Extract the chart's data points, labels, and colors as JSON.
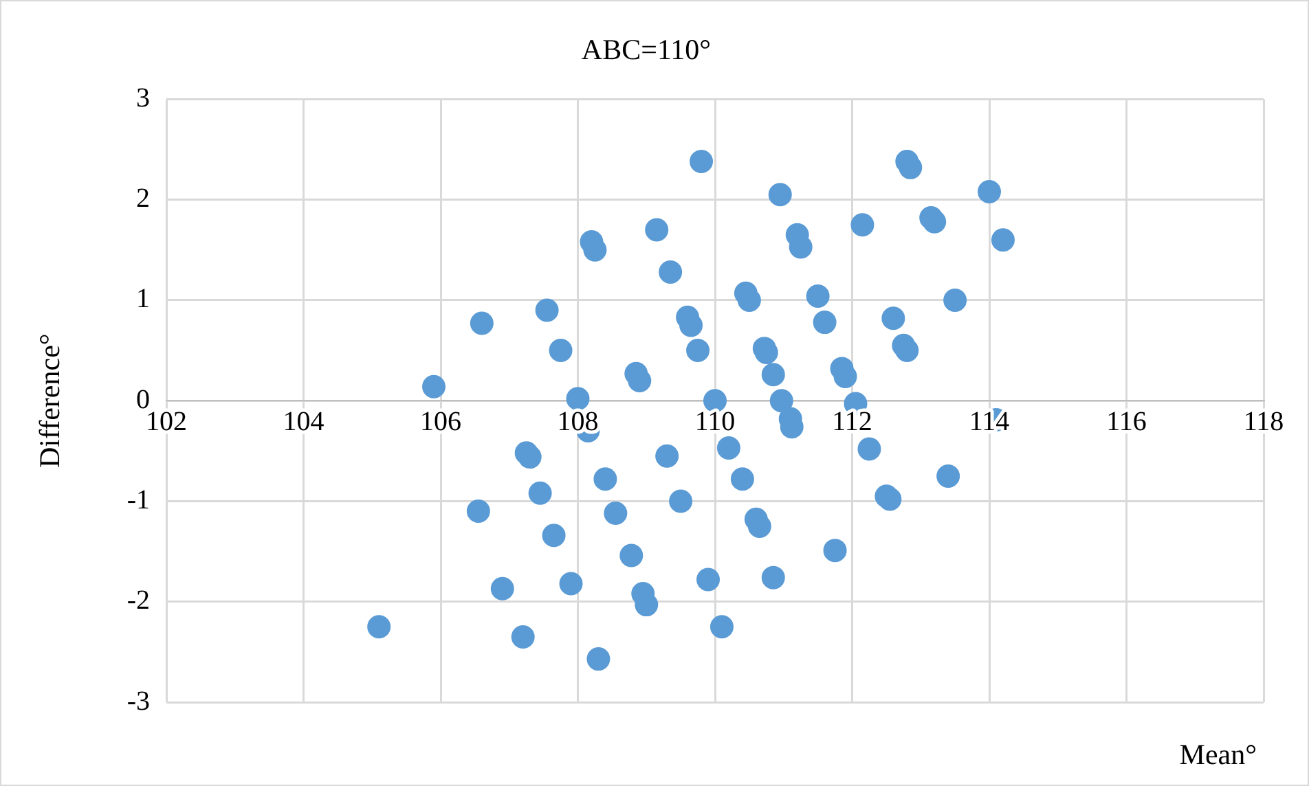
{
  "chart_data": {
    "type": "scatter",
    "title": "ABC=110°",
    "xlabel": "Mean°",
    "ylabel": "Difference°",
    "xlim": [
      102,
      118
    ],
    "xticks": [
      102,
      104,
      106,
      108,
      110,
      112,
      114,
      116,
      118
    ],
    "ylim": [
      -3,
      3
    ],
    "yticks": [
      -3,
      -2,
      -1,
      0,
      1,
      2,
      3
    ],
    "grid": true,
    "marker": "circle",
    "legend": false,
    "series": [
      {
        "color": "#5b9bd5",
        "x": [
          105.1,
          105.9,
          106.6,
          106.55,
          106.9,
          107.2,
          107.25,
          107.3,
          107.45,
          107.55,
          107.65,
          107.75,
          107.9,
          108.0,
          108.15,
          108.2,
          108.25,
          108.3,
          108.4,
          108.55,
          108.78,
          108.85,
          108.9,
          108.95,
          109.0,
          109.15,
          109.3,
          109.35,
          109.5,
          109.6,
          109.65,
          109.75,
          109.8,
          109.9,
          110.0,
          110.1,
          110.2,
          110.4,
          110.45,
          110.5,
          110.6,
          110.65,
          110.72,
          110.75,
          110.85,
          110.85,
          110.95,
          110.97,
          111.1,
          111.12,
          111.2,
          111.25,
          111.5,
          111.6,
          111.75,
          111.85,
          111.9,
          112.05,
          112.15,
          112.25,
          112.5,
          112.55,
          112.6,
          112.75,
          112.8,
          112.8,
          112.85,
          113.15,
          113.2,
          113.4,
          113.5,
          114.0,
          114.1,
          114.2
        ],
        "values": [
          -2.25,
          0.14,
          0.77,
          -1.1,
          -1.87,
          -2.35,
          -0.52,
          -0.56,
          -0.92,
          0.9,
          -1.34,
          0.5,
          -1.82,
          0.02,
          -0.3,
          1.58,
          1.5,
          -2.57,
          -0.78,
          -1.12,
          -1.54,
          0.27,
          0.2,
          -1.92,
          -2.03,
          1.7,
          -0.55,
          1.28,
          -1.0,
          0.83,
          0.75,
          0.5,
          2.38,
          -1.78,
          0.0,
          -2.25,
          -0.47,
          -0.78,
          1.07,
          1.0,
          -1.18,
          -1.25,
          0.52,
          0.48,
          -1.76,
          0.26,
          2.05,
          0.0,
          -0.18,
          -0.26,
          1.65,
          1.53,
          1.04,
          0.78,
          -1.49,
          0.32,
          0.24,
          -0.03,
          1.75,
          -0.48,
          -0.95,
          -0.98,
          0.82,
          0.55,
          0.5,
          2.38,
          2.32,
          1.82,
          1.78,
          -0.75,
          1.0,
          2.08,
          -0.19,
          1.6
        ]
      }
    ]
  }
}
